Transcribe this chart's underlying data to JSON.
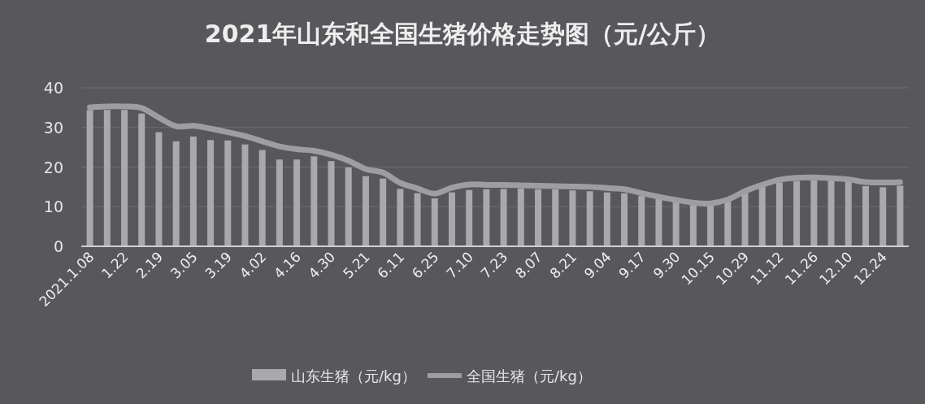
{
  "chart_data": {
    "type": "bar",
    "title": "2021年山东和全国生猪价格走势图（元/公斤）",
    "categories": [
      "2021.1.08",
      null,
      "1.22",
      null,
      "2.19",
      null,
      "3.05",
      null,
      "3.19",
      null,
      "4.02",
      null,
      "4.16",
      null,
      "4.30",
      null,
      "5.21",
      null,
      "6.11",
      null,
      "6.25",
      null,
      "7.10",
      null,
      "7.23",
      null,
      "8.07",
      null,
      "8.21",
      null,
      "9.04",
      null,
      "9.17",
      null,
      "9.30",
      null,
      "10.15",
      null,
      "10.29",
      null,
      "11.12",
      null,
      "11.26",
      null,
      "12.10",
      null,
      "12.24",
      null
    ],
    "series": [
      {
        "name": "山东生猪（元/kg）",
        "color": "#a9a9ab",
        "values": [
          34.4,
          34.4,
          34.4,
          33.5,
          28.8,
          26.5,
          27.7,
          26.8,
          26.7,
          25.7,
          24.3,
          21.9,
          21.9,
          22.7,
          21.5,
          19.9,
          17.7,
          17.1,
          14.5,
          13.4,
          12.1,
          13.6,
          14.2,
          14.4,
          14.5,
          14.6,
          14.4,
          14.4,
          14.1,
          13.9,
          13.6,
          13.4,
          12.7,
          12.1,
          11.5,
          10.4,
          10.3,
          11.3,
          13.9,
          15.0,
          16.1,
          16.5,
          16.7,
          16.6,
          16.3,
          15.2,
          14.9,
          15.3
        ]
      },
      {
        "name": "全国生猪（元/kg）",
        "type": "line",
        "color": "#9e9ea2",
        "values": [
          35.1,
          35.3,
          35.3,
          34.9,
          32.5,
          30.3,
          30.4,
          29.7,
          28.8,
          27.8,
          26.5,
          25.2,
          24.5,
          24.1,
          23.1,
          21.6,
          19.5,
          18.6,
          16.0,
          14.6,
          13.3,
          14.8,
          15.6,
          15.5,
          15.5,
          15.4,
          15.3,
          15.2,
          15.1,
          15.0,
          14.7,
          14.4,
          13.4,
          12.5,
          11.7,
          11.0,
          10.8,
          11.8,
          13.9,
          15.5,
          16.8,
          17.3,
          17.4,
          17.2,
          16.9,
          16.2,
          16.1,
          16.2
        ]
      }
    ],
    "ylim": [
      0,
      40
    ],
    "yticks": [
      0,
      10,
      20,
      30,
      40
    ],
    "grid": "y",
    "legend": "bottom"
  }
}
